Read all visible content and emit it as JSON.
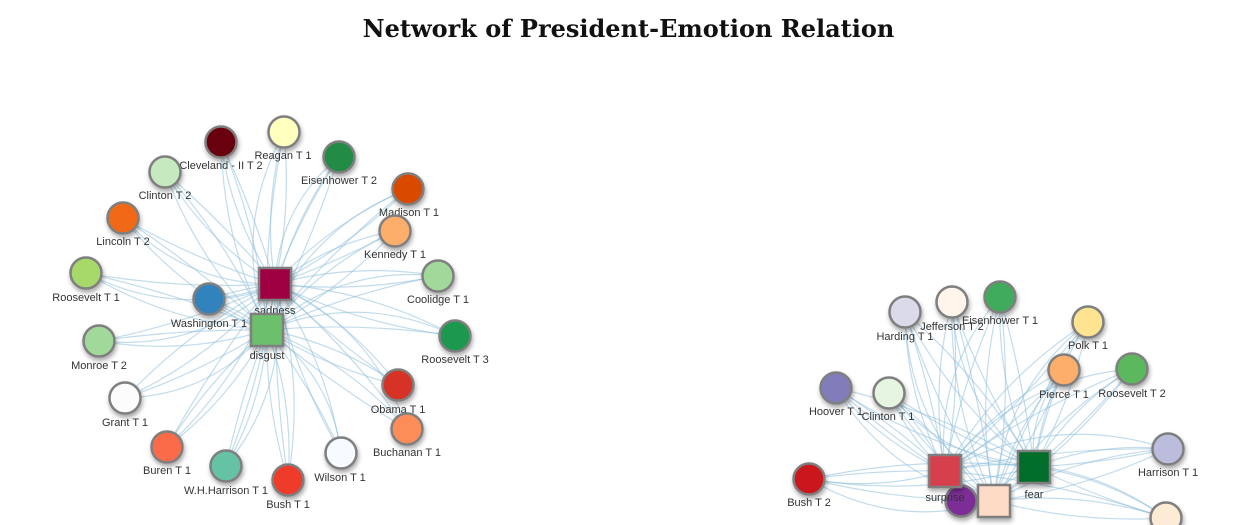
{
  "title": "Network of President-Emotion Relation",
  "left_network": {
    "emotions": [
      {
        "id": "sadness",
        "label": "sadness",
        "color": "#9e0142"
      },
      {
        "id": "disgust",
        "label": "disgust",
        "color": "#6cc06c"
      }
    ],
    "presidents": [
      {
        "label": "Cleveland - II T 2",
        "color": "#67000d"
      },
      {
        "label": "Reagan T 1",
        "color": "#ffffbf"
      },
      {
        "label": "Eisenhower T 2",
        "color": "#238b45"
      },
      {
        "label": "Clinton T 2",
        "color": "#c7e9c0"
      },
      {
        "label": "Madison T 1",
        "color": "#d94801"
      },
      {
        "label": "Lincoln T 2",
        "color": "#f16913"
      },
      {
        "label": "Kennedy T 1",
        "color": "#fdae6b"
      },
      {
        "label": "Coolidge T 1",
        "color": "#a1d99b"
      },
      {
        "label": "Roosevelt T 1",
        "color": "#a6d96a"
      },
      {
        "label": "Washington T 1",
        "color": "#3182bd"
      },
      {
        "label": "Roosevelt T 3",
        "color": "#1a9850"
      },
      {
        "label": "Monroe T 2",
        "color": "#a1d99b"
      },
      {
        "label": "Obama T 1",
        "color": "#d73027"
      },
      {
        "label": "Grant T 1",
        "color": "#fcfcfc"
      },
      {
        "label": "Buchanan T 1",
        "color": "#fc8d59"
      },
      {
        "label": "Buren T 1",
        "color": "#fb6a4a"
      },
      {
        "label": "Wilson T 1",
        "color": "#f7fbff"
      },
      {
        "label": "W.H.Harrison T 1",
        "color": "#66c2a4"
      },
      {
        "label": "Bush T 1",
        "color": "#ef3b2c"
      }
    ]
  },
  "right_network": {
    "emotions": [
      {
        "id": "surprise",
        "label": "surprise",
        "color": "#d6404e"
      },
      {
        "id": "fear",
        "label": "fear",
        "color": "#006d2c"
      },
      {
        "id": "anticipation",
        "label": "",
        "color": "#fddbc7"
      }
    ],
    "presidents": [
      {
        "label": "Harding T 1",
        "color": "#dadaeb"
      },
      {
        "label": "Jefferson T 2",
        "color": "#fff5eb"
      },
      {
        "label": "Eisenhower T 1",
        "color": "#41ab5d"
      },
      {
        "label": "Polk T 1",
        "color": "#fee391"
      },
      {
        "label": "Pierce T 1",
        "color": "#fdae6b"
      },
      {
        "label": "Roosevelt T 2",
        "color": "#5cb85c"
      },
      {
        "label": "Hoover T 1",
        "color": "#807dba"
      },
      {
        "label": "Clinton T 1",
        "color": "#e5f5e0"
      },
      {
        "label": "Harrison T 1",
        "color": "#bcbddc"
      },
      {
        "label": "Bush T 2",
        "color": "#cb181d"
      },
      {
        "label": "",
        "color": "#7b2d96"
      },
      {
        "label": "",
        "color": "#fdebd6"
      }
    ]
  }
}
